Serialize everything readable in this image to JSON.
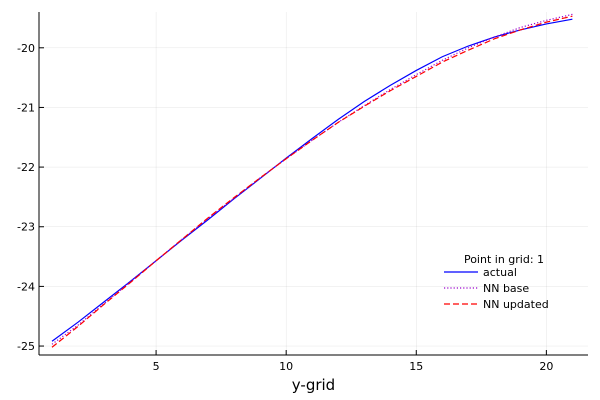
{
  "chart_data": {
    "type": "line",
    "title": "",
    "xlabel": "y-grid",
    "ylabel": "",
    "xlim": [
      0.5,
      21.6
    ],
    "ylim": [
      -25.15,
      -19.4
    ],
    "xticks": [
      5,
      10,
      15,
      20
    ],
    "xtick_labels": [
      "5",
      "10",
      "15",
      "20"
    ],
    "yticks": [
      -25,
      -24,
      -23,
      -22,
      -21,
      -20
    ],
    "ytick_labels": [
      "-25",
      "-24",
      "-23",
      "-22",
      "-21",
      "-20"
    ],
    "grid": true,
    "legend": {
      "title": "Point in grid: 1",
      "position": "bottom-right"
    },
    "x": [
      1,
      2,
      3,
      4,
      5,
      6,
      7,
      8,
      9,
      10,
      11,
      12,
      13,
      14,
      15,
      16,
      17,
      18,
      19,
      20,
      21
    ],
    "series": [
      {
        "name": "actual",
        "color": "#0000ff",
        "style": "solid",
        "values": [
          -24.92,
          -24.6,
          -24.26,
          -23.92,
          -23.57,
          -23.22,
          -22.88,
          -22.53,
          -22.19,
          -21.85,
          -21.52,
          -21.2,
          -20.9,
          -20.63,
          -20.38,
          -20.15,
          -19.97,
          -19.82,
          -19.7,
          -19.6,
          -19.52
        ]
      },
      {
        "name": "NN base",
        "color": "#9900cc",
        "style": "dotted",
        "values": [
          -24.97,
          -24.65,
          -24.29,
          -23.93,
          -23.57,
          -23.21,
          -22.86,
          -22.52,
          -22.18,
          -21.86,
          -21.55,
          -21.25,
          -20.97,
          -20.7,
          -20.45,
          -20.21,
          -20.0,
          -19.82,
          -19.66,
          -19.54,
          -19.44
        ]
      },
      {
        "name": "NN updated",
        "color": "#ff0000",
        "style": "dashed",
        "values": [
          -25.02,
          -24.67,
          -24.3,
          -23.94,
          -23.57,
          -23.21,
          -22.85,
          -22.51,
          -22.18,
          -21.86,
          -21.55,
          -21.25,
          -20.98,
          -20.72,
          -20.48,
          -20.24,
          -20.04,
          -19.85,
          -19.7,
          -19.57,
          -19.47
        ]
      }
    ]
  }
}
